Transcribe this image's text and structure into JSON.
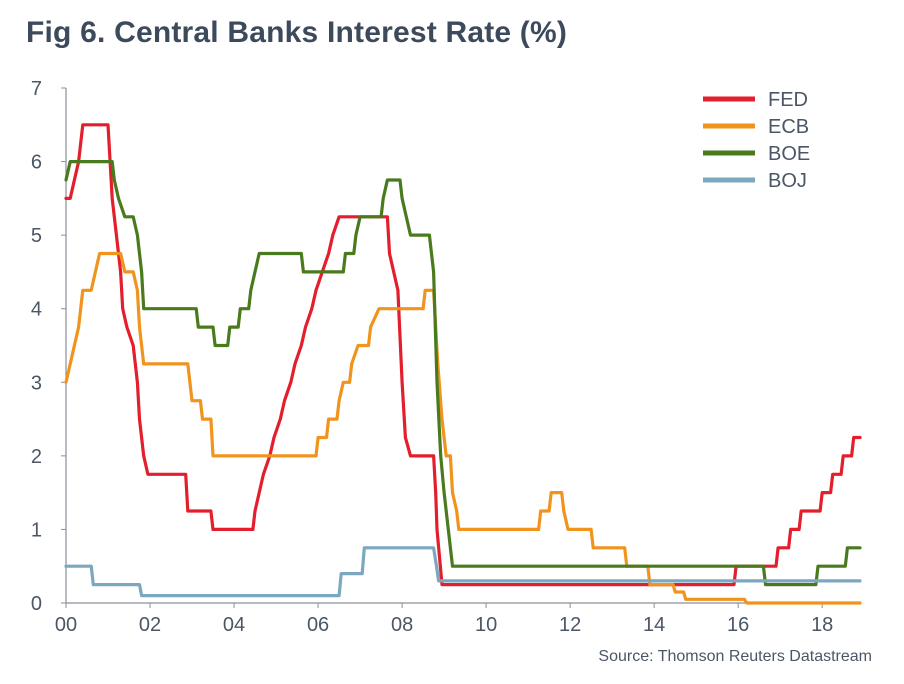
{
  "title": "Fig 6. Central Banks Interest Rate (%)",
  "source": "Source: Thomson Reuters Datastream",
  "chart_data": {
    "type": "line",
    "title": "Fig 6. Central Banks Interest Rate (%)",
    "xlabel": "",
    "ylabel": "",
    "xlim": [
      2000,
      2018.9
    ],
    "ylim": [
      0,
      7
    ],
    "x_ticks": [
      "00",
      "02",
      "04",
      "06",
      "08",
      "10",
      "12",
      "14",
      "16",
      "18"
    ],
    "y_ticks": [
      "0",
      "1",
      "2",
      "3",
      "4",
      "5",
      "6",
      "7"
    ],
    "legend_position": "top-right",
    "grid": false,
    "series": [
      {
        "name": "FED",
        "color": "#e31e2d",
        "points": [
          [
            2000.0,
            5.5
          ],
          [
            2000.1,
            5.5
          ],
          [
            2000.2,
            5.75
          ],
          [
            2000.3,
            6.0
          ],
          [
            2000.4,
            6.5
          ],
          [
            2001.0,
            6.5
          ],
          [
            2001.05,
            6.0
          ],
          [
            2001.1,
            5.5
          ],
          [
            2001.2,
            5.0
          ],
          [
            2001.3,
            4.5
          ],
          [
            2001.35,
            4.0
          ],
          [
            2001.45,
            3.75
          ],
          [
            2001.6,
            3.5
          ],
          [
            2001.7,
            3.0
          ],
          [
            2001.75,
            2.5
          ],
          [
            2001.85,
            2.0
          ],
          [
            2001.95,
            1.75
          ],
          [
            2002.85,
            1.75
          ],
          [
            2002.9,
            1.25
          ],
          [
            2003.45,
            1.25
          ],
          [
            2003.5,
            1.0
          ],
          [
            2004.45,
            1.0
          ],
          [
            2004.5,
            1.25
          ],
          [
            2004.6,
            1.5
          ],
          [
            2004.7,
            1.75
          ],
          [
            2004.85,
            2.0
          ],
          [
            2004.95,
            2.25
          ],
          [
            2005.1,
            2.5
          ],
          [
            2005.2,
            2.75
          ],
          [
            2005.35,
            3.0
          ],
          [
            2005.45,
            3.25
          ],
          [
            2005.6,
            3.5
          ],
          [
            2005.7,
            3.75
          ],
          [
            2005.85,
            4.0
          ],
          [
            2005.95,
            4.25
          ],
          [
            2006.1,
            4.5
          ],
          [
            2006.25,
            4.75
          ],
          [
            2006.35,
            5.0
          ],
          [
            2006.5,
            5.25
          ],
          [
            2007.65,
            5.25
          ],
          [
            2007.7,
            4.75
          ],
          [
            2007.8,
            4.5
          ],
          [
            2007.9,
            4.25
          ],
          [
            2008.0,
            3.0
          ],
          [
            2008.08,
            2.25
          ],
          [
            2008.2,
            2.0
          ],
          [
            2008.75,
            2.0
          ],
          [
            2008.8,
            1.5
          ],
          [
            2008.83,
            1.0
          ],
          [
            2008.95,
            0.25
          ],
          [
            2015.9,
            0.25
          ],
          [
            2015.95,
            0.5
          ],
          [
            2016.9,
            0.5
          ],
          [
            2016.95,
            0.75
          ],
          [
            2017.2,
            0.75
          ],
          [
            2017.25,
            1.0
          ],
          [
            2017.45,
            1.0
          ],
          [
            2017.5,
            1.25
          ],
          [
            2017.95,
            1.25
          ],
          [
            2018.0,
            1.5
          ],
          [
            2018.2,
            1.5
          ],
          [
            2018.25,
            1.75
          ],
          [
            2018.45,
            1.75
          ],
          [
            2018.5,
            2.0
          ],
          [
            2018.7,
            2.0
          ],
          [
            2018.75,
            2.25
          ],
          [
            2018.9,
            2.25
          ]
        ]
      },
      {
        "name": "ECB",
        "color": "#f0941e",
        "points": [
          [
            2000.0,
            3.0
          ],
          [
            2000.1,
            3.25
          ],
          [
            2000.2,
            3.5
          ],
          [
            2000.3,
            3.75
          ],
          [
            2000.4,
            4.25
          ],
          [
            2000.6,
            4.25
          ],
          [
            2000.7,
            4.5
          ],
          [
            2000.8,
            4.75
          ],
          [
            2001.3,
            4.75
          ],
          [
            2001.4,
            4.5
          ],
          [
            2001.6,
            4.5
          ],
          [
            2001.7,
            4.25
          ],
          [
            2001.75,
            3.75
          ],
          [
            2001.85,
            3.25
          ],
          [
            2002.9,
            3.25
          ],
          [
            2003.0,
            2.75
          ],
          [
            2003.2,
            2.75
          ],
          [
            2003.25,
            2.5
          ],
          [
            2003.45,
            2.5
          ],
          [
            2003.5,
            2.0
          ],
          [
            2005.95,
            2.0
          ],
          [
            2006.0,
            2.25
          ],
          [
            2006.2,
            2.25
          ],
          [
            2006.25,
            2.5
          ],
          [
            2006.45,
            2.5
          ],
          [
            2006.5,
            2.75
          ],
          [
            2006.6,
            3.0
          ],
          [
            2006.75,
            3.0
          ],
          [
            2006.8,
            3.25
          ],
          [
            2006.95,
            3.5
          ],
          [
            2007.2,
            3.5
          ],
          [
            2007.25,
            3.75
          ],
          [
            2007.45,
            4.0
          ],
          [
            2008.5,
            4.0
          ],
          [
            2008.55,
            4.25
          ],
          [
            2008.75,
            4.25
          ],
          [
            2008.8,
            3.75
          ],
          [
            2008.85,
            3.25
          ],
          [
            2008.95,
            2.5
          ],
          [
            2009.05,
            2.0
          ],
          [
            2009.15,
            2.0
          ],
          [
            2009.2,
            1.5
          ],
          [
            2009.3,
            1.25
          ],
          [
            2009.35,
            1.0
          ],
          [
            2011.25,
            1.0
          ],
          [
            2011.3,
            1.25
          ],
          [
            2011.5,
            1.25
          ],
          [
            2011.55,
            1.5
          ],
          [
            2011.8,
            1.5
          ],
          [
            2011.85,
            1.25
          ],
          [
            2011.95,
            1.0
          ],
          [
            2012.5,
            1.0
          ],
          [
            2012.55,
            0.75
          ],
          [
            2013.3,
            0.75
          ],
          [
            2013.35,
            0.5
          ],
          [
            2013.85,
            0.5
          ],
          [
            2013.9,
            0.25
          ],
          [
            2014.45,
            0.25
          ],
          [
            2014.5,
            0.15
          ],
          [
            2014.7,
            0.15
          ],
          [
            2014.75,
            0.05
          ],
          [
            2016.15,
            0.05
          ],
          [
            2016.2,
            0.0
          ],
          [
            2018.9,
            0.0
          ]
        ]
      },
      {
        "name": "BOE",
        "color": "#4a7a1e",
        "points": [
          [
            2000.0,
            5.75
          ],
          [
            2000.1,
            6.0
          ],
          [
            2001.1,
            6.0
          ],
          [
            2001.15,
            5.75
          ],
          [
            2001.25,
            5.5
          ],
          [
            2001.4,
            5.25
          ],
          [
            2001.6,
            5.25
          ],
          [
            2001.7,
            5.0
          ],
          [
            2001.8,
            4.5
          ],
          [
            2001.85,
            4.0
          ],
          [
            2003.1,
            4.0
          ],
          [
            2003.15,
            3.75
          ],
          [
            2003.5,
            3.75
          ],
          [
            2003.55,
            3.5
          ],
          [
            2003.85,
            3.5
          ],
          [
            2003.9,
            3.75
          ],
          [
            2004.1,
            3.75
          ],
          [
            2004.15,
            4.0
          ],
          [
            2004.35,
            4.0
          ],
          [
            2004.4,
            4.25
          ],
          [
            2004.5,
            4.5
          ],
          [
            2004.6,
            4.75
          ],
          [
            2005.6,
            4.75
          ],
          [
            2005.65,
            4.5
          ],
          [
            2006.6,
            4.5
          ],
          [
            2006.65,
            4.75
          ],
          [
            2006.85,
            4.75
          ],
          [
            2006.9,
            5.0
          ],
          [
            2007.0,
            5.25
          ],
          [
            2007.5,
            5.25
          ],
          [
            2007.55,
            5.5
          ],
          [
            2007.65,
            5.75
          ],
          [
            2007.95,
            5.75
          ],
          [
            2008.0,
            5.5
          ],
          [
            2008.1,
            5.25
          ],
          [
            2008.2,
            5.0
          ],
          [
            2008.65,
            5.0
          ],
          [
            2008.75,
            4.5
          ],
          [
            2008.83,
            3.0
          ],
          [
            2008.92,
            2.0
          ],
          [
            2009.0,
            1.5
          ],
          [
            2009.1,
            1.0
          ],
          [
            2009.2,
            0.5
          ],
          [
            2016.6,
            0.5
          ],
          [
            2016.65,
            0.25
          ],
          [
            2017.85,
            0.25
          ],
          [
            2017.9,
            0.5
          ],
          [
            2018.55,
            0.5
          ],
          [
            2018.6,
            0.75
          ],
          [
            2018.9,
            0.75
          ]
        ]
      },
      {
        "name": "BOJ",
        "color": "#7ba7bf",
        "points": [
          [
            2000.0,
            0.5
          ],
          [
            2000.6,
            0.5
          ],
          [
            2000.65,
            0.25
          ],
          [
            2001.1,
            0.25
          ],
          [
            2001.2,
            0.25
          ],
          [
            2001.75,
            0.25
          ],
          [
            2001.8,
            0.1
          ],
          [
            2006.5,
            0.1
          ],
          [
            2006.55,
            0.4
          ],
          [
            2007.05,
            0.4
          ],
          [
            2007.1,
            0.75
          ],
          [
            2008.75,
            0.75
          ],
          [
            2008.82,
            0.5
          ],
          [
            2008.87,
            0.3
          ],
          [
            2018.9,
            0.3
          ]
        ]
      }
    ]
  }
}
